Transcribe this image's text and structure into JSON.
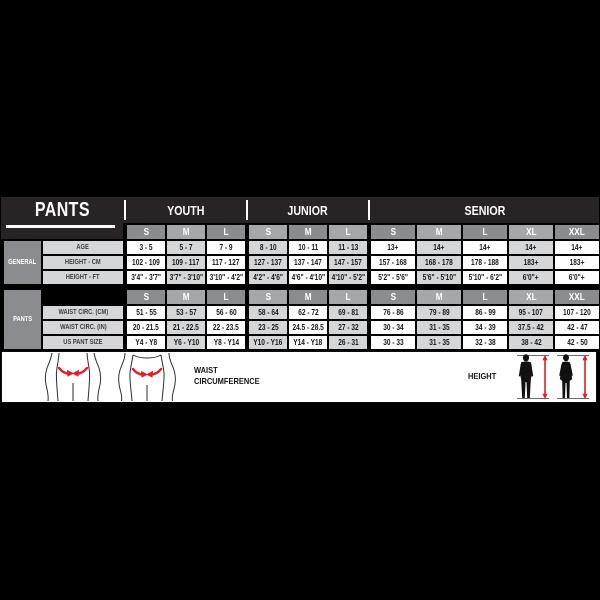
{
  "chart_data": {
    "type": "table",
    "title": "PANTS",
    "column_groups": [
      {
        "label": "YOUTH",
        "sizes": [
          "S",
          "M",
          "L"
        ]
      },
      {
        "label": "JUNIOR",
        "sizes": [
          "S",
          "M",
          "L"
        ]
      },
      {
        "label": "SENIOR",
        "sizes": [
          "S",
          "M",
          "L",
          "XL",
          "XXL"
        ]
      }
    ],
    "sections": [
      {
        "label": "GENERAL",
        "rows": [
          {
            "label": "AGE",
            "values": [
              "3 - 5",
              "5 - 7",
              "7 - 9",
              "8 - 10",
              "10 - 11",
              "11 - 13",
              "13+",
              "14+",
              "14+",
              "14+",
              "14+"
            ]
          },
          {
            "label": "HEIGHT - CM",
            "values": [
              "102 - 109",
              "109 - 117",
              "117 - 127",
              "127 - 137",
              "137 - 147",
              "147 - 157",
              "157 - 168",
              "168 - 178",
              "178 - 188",
              "183+",
              "183+"
            ]
          },
          {
            "label": "HEIGHT - FT",
            "values": [
              "3'4\" - 3'7\"",
              "3'7\" - 3'10\"",
              "3'10\" - 4'2\"",
              "4'2\" - 4'6\"",
              "4'6\" - 4'10\"",
              "4'10\" - 5'2\"",
              "5'2\" - 5'6\"",
              "5'6\" - 5'10\"",
              "5'10\" - 6'2\"",
              "6'0\"+",
              "6'0\"+"
            ]
          }
        ]
      },
      {
        "label": "PANTS",
        "rows": [
          {
            "label": "WAIST CIRC. (CM)",
            "values": [
              "51 - 55",
              "53 - 57",
              "56 - 60",
              "58 - 64",
              "62 - 72",
              "69 - 81",
              "76 - 86",
              "79 - 89",
              "86 - 99",
              "95 - 107",
              "107 - 120"
            ]
          },
          {
            "label": "WAIST CIRC. (IN)",
            "values": [
              "20 - 21.5",
              "21 - 22.5",
              "22 - 23.5",
              "23 - 25",
              "24.5 - 28.5",
              "27 - 32",
              "30 - 34",
              "31 - 35",
              "34 - 39",
              "37.5 - 42",
              "42 - 47"
            ]
          },
          {
            "label": "US PANT SIZE",
            "values": [
              "Y4 - Y8",
              "Y6 - Y10",
              "Y8 - Y14",
              "Y10 - Y16",
              "Y14 - Y18",
              "26 - 31",
              "30 - 33",
              "31 - 35",
              "32 - 38",
              "38 - 42",
              "42 - 50"
            ]
          }
        ]
      }
    ]
  },
  "legend": {
    "waist_line1": "WAIST",
    "waist_line2": "CIRCUMFERENCE",
    "height": "HEIGHT"
  },
  "colors": {
    "accent_red": "#e31e26",
    "header_charcoal": "#282324",
    "cell_white": "#ffffff",
    "cell_gray": "#d5d6d8",
    "size_header_dark": "#8a8c8f",
    "size_header_light": "#a5a7a9",
    "section_box_gray": "#8a8c8f",
    "background": "#000000"
  }
}
